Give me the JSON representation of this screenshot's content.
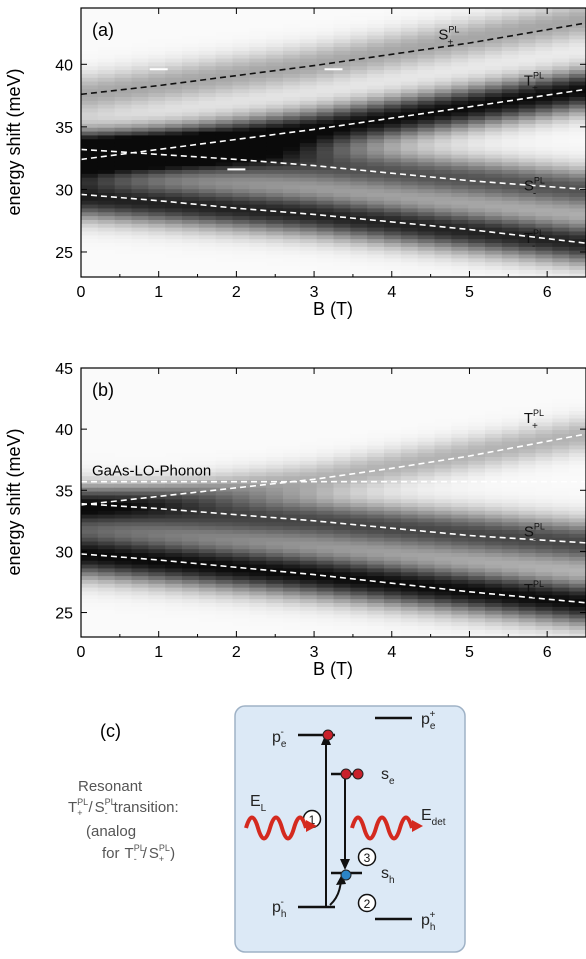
{
  "chart_data": [
    {
      "type": "heatmap",
      "panel_label": "(a)",
      "xlabel": "B (T)",
      "ylabel": "energy shift (meV)",
      "xlim": [
        0,
        6.5
      ],
      "ylim": [
        23,
        44.5
      ],
      "x_ticks": [
        "0",
        "1",
        "2",
        "3",
        "4",
        "5",
        "6"
      ],
      "x_tick_values": [
        0,
        1,
        2,
        3,
        4,
        5,
        6
      ],
      "y_ticks": [
        "25",
        "30",
        "35",
        "40"
      ],
      "y_tick_values": [
        25,
        30,
        35,
        40
      ],
      "colormap": "grayscale (dark = high intensity)",
      "bands": [
        {
          "x": [
            0,
            3,
            6.5
          ],
          "y": [
            32.6,
            34.8,
            38.0
          ],
          "width": 2.4,
          "strength": 1.0
        },
        {
          "x": [
            0,
            3,
            6.5
          ],
          "y": [
            33.1,
            32.0,
            30.0
          ],
          "width": 2.4,
          "strength": 0.7
        },
        {
          "x": [
            0,
            3,
            6.5
          ],
          "y": [
            29.4,
            28.0,
            25.7
          ],
          "width": 2.4,
          "strength": 0.9
        },
        {
          "x": [
            0,
            3,
            6.5
          ],
          "y": [
            37.6,
            40.0,
            43.6
          ],
          "width": 2.2,
          "strength": 0.35
        }
      ],
      "series": [
        {
          "name": "S+PL",
          "label_main": "S",
          "label_sup": "PL",
          "label_sub": "+",
          "color": "#111111",
          "x": [
            0,
            1,
            2,
            3,
            4,
            5,
            6.5
          ],
          "y": [
            37.6,
            38.3,
            39.1,
            39.9,
            40.8,
            41.7,
            43.3
          ],
          "label_x": 4.6,
          "label_y": 42.0
        },
        {
          "name": "T+PL",
          "label_main": "T",
          "label_sup": "PL",
          "label_sub": "+",
          "color": "#ffffff",
          "x": [
            0,
            1,
            2,
            3,
            4,
            5,
            6.5
          ],
          "y": [
            32.4,
            33.2,
            34.0,
            34.8,
            35.7,
            36.6,
            38.0
          ],
          "label_x": 5.7,
          "label_y": 38.3
        },
        {
          "name": "S-PL",
          "label_main": "S",
          "label_sup": "PL",
          "label_sub": "-",
          "color": "#ffffff",
          "x": [
            0,
            1,
            2,
            3,
            4,
            5,
            6.5
          ],
          "y": [
            33.2,
            32.8,
            32.4,
            31.9,
            31.3,
            30.7,
            30.0
          ],
          "label_x": 5.7,
          "label_y": 29.9
        },
        {
          "name": "T-PL",
          "label_main": "T",
          "label_sup": "PL",
          "label_sub": "-",
          "color": "#ffffff",
          "x": [
            0,
            1,
            2,
            3,
            4,
            5,
            6.5
          ],
          "y": [
            29.6,
            29.1,
            28.5,
            28.0,
            27.4,
            26.8,
            25.7
          ],
          "label_x": 5.7,
          "label_y": 25.7
        }
      ],
      "tick_markers": [
        {
          "x": 1.0,
          "y": 39.6
        },
        {
          "x": 2.0,
          "y": 31.6
        },
        {
          "x": 3.25,
          "y": 39.6
        }
      ]
    },
    {
      "type": "heatmap",
      "panel_label": "(b)",
      "xlabel": "B (T)",
      "ylabel": "energy shift (meV)",
      "xlim": [
        0,
        6.5
      ],
      "ylim": [
        23,
        45
      ],
      "x_ticks": [
        "0",
        "1",
        "2",
        "3",
        "4",
        "5",
        "6"
      ],
      "x_tick_values": [
        0,
        1,
        2,
        3,
        4,
        5,
        6
      ],
      "y_ticks": [
        "25",
        "30",
        "35",
        "40",
        "45"
      ],
      "y_tick_values": [
        25,
        30,
        35,
        40,
        45
      ],
      "colormap": "grayscale (dark = high intensity)",
      "bands": [
        {
          "x": [
            0,
            3,
            6.5
          ],
          "y": [
            29.8,
            28.1,
            25.8
          ],
          "width": 2.6,
          "strength": 1.0
        },
        {
          "x": [
            0,
            3,
            6.5
          ],
          "y": [
            33.6,
            32.5,
            30.7
          ],
          "width": 2.6,
          "strength": 0.75
        },
        {
          "x": [
            0,
            3,
            6.5
          ],
          "y": [
            33.8,
            35.9,
            39.6
          ],
          "width": 2.0,
          "strength": 0.3
        }
      ],
      "series": [
        {
          "name": "T+PL",
          "label_main": "T",
          "label_sup": "PL",
          "label_sub": "+",
          "color": "#ffffff",
          "x": [
            0,
            1,
            2,
            3,
            4,
            5,
            6.5
          ],
          "y": [
            33.8,
            34.5,
            35.2,
            35.9,
            36.8,
            37.8,
            39.6
          ],
          "label_x": 5.7,
          "label_y": 40.5
        },
        {
          "name": "S-PL",
          "label_main": "S",
          "label_sup": "PL",
          "label_sub": "-",
          "color": "#ffffff",
          "x": [
            0,
            1,
            2,
            3,
            4,
            5,
            6.5
          ],
          "y": [
            33.9,
            33.5,
            33.0,
            32.5,
            31.9,
            31.3,
            30.7
          ],
          "label_x": 5.7,
          "label_y": 31.2
        },
        {
          "name": "T-PL",
          "label_main": "T",
          "label_sup": "PL",
          "label_sub": "-",
          "color": "#ffffff",
          "x": [
            0,
            1,
            2,
            3,
            4,
            5,
            6.5
          ],
          "y": [
            29.8,
            29.3,
            28.7,
            28.1,
            27.4,
            26.7,
            25.8
          ],
          "label_x": 5.7,
          "label_y": 26.5
        }
      ],
      "reference_line": {
        "label": "GaAs-LO-Phonon",
        "y": 35.7,
        "color": "#ffffff"
      }
    }
  ],
  "diagram": {
    "panel_label": "(c)",
    "caption_lines": [
      "Resonant",
      "/",
      "transition:",
      "(analog",
      "for",
      "/",
      ")"
    ],
    "caption_terms": {
      "t_plus": {
        "main": "T",
        "sup": "PL",
        "sub": "+"
      },
      "s_minus": {
        "main": "S",
        "sup": "PL",
        "sub": "-"
      },
      "t_minus": {
        "main": "T",
        "sup": "PL",
        "sub": "-"
      },
      "s_plus": {
        "main": "S",
        "sup": "PL",
        "sub": "+"
      }
    },
    "levels": {
      "pe_minus": {
        "main": "p",
        "sub": "e",
        "sup": "-"
      },
      "pe_plus": {
        "main": "p",
        "sub": "e",
        "sup": "+"
      },
      "se": {
        "main": "s",
        "sub": "e"
      },
      "sh": {
        "main": "s",
        "sub": "h"
      },
      "ph_minus": {
        "main": "p",
        "sub": "h",
        "sup": "-"
      },
      "ph_plus": {
        "main": "p",
        "sub": "h",
        "sup": "+"
      }
    },
    "photons": {
      "laser": {
        "main": "E",
        "sub": "L"
      },
      "detected": {
        "main": "E",
        "sub": "det"
      }
    },
    "steps": [
      "1",
      "2",
      "3"
    ],
    "colors": {
      "box": "#dce9f6",
      "box_border": "#9fb2c6",
      "electron": "#c8202a",
      "hole": "#2b84c6",
      "photon": "#d42a1f"
    }
  }
}
